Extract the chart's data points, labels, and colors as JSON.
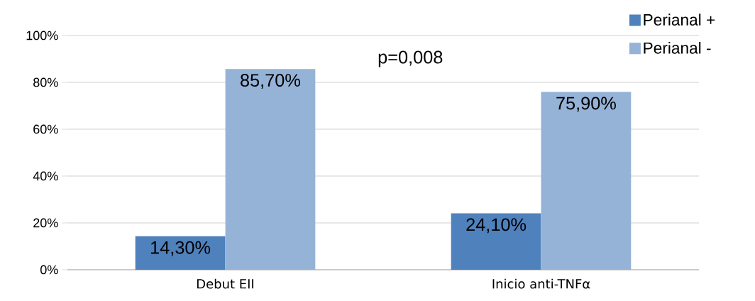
{
  "chart_data": {
    "type": "bar",
    "categories": [
      "Debut EII",
      "Inicio anti-TNFα"
    ],
    "series": [
      {
        "name": "Perianal +",
        "color": "#4f81bd",
        "values": [
          14.3,
          24.1
        ],
        "value_labels": [
          "14,30%",
          "24,10%"
        ]
      },
      {
        "name": "Perianal -",
        "color": "#95b3d7",
        "values": [
          85.7,
          75.9
        ],
        "value_labels": [
          "85,70%",
          "75,90%"
        ]
      }
    ],
    "ylim": [
      0,
      100
    ],
    "yticks": [
      {
        "value": 0,
        "label": "0%"
      },
      {
        "value": 20,
        "label": "20%"
      },
      {
        "value": 40,
        "label": "40%"
      },
      {
        "value": 60,
        "label": "60%"
      },
      {
        "value": 80,
        "label": "80%"
      },
      {
        "value": 100,
        "label": "100%"
      }
    ],
    "grid": "y",
    "legend": "top right",
    "annotations": [
      "p=0,008"
    ]
  }
}
